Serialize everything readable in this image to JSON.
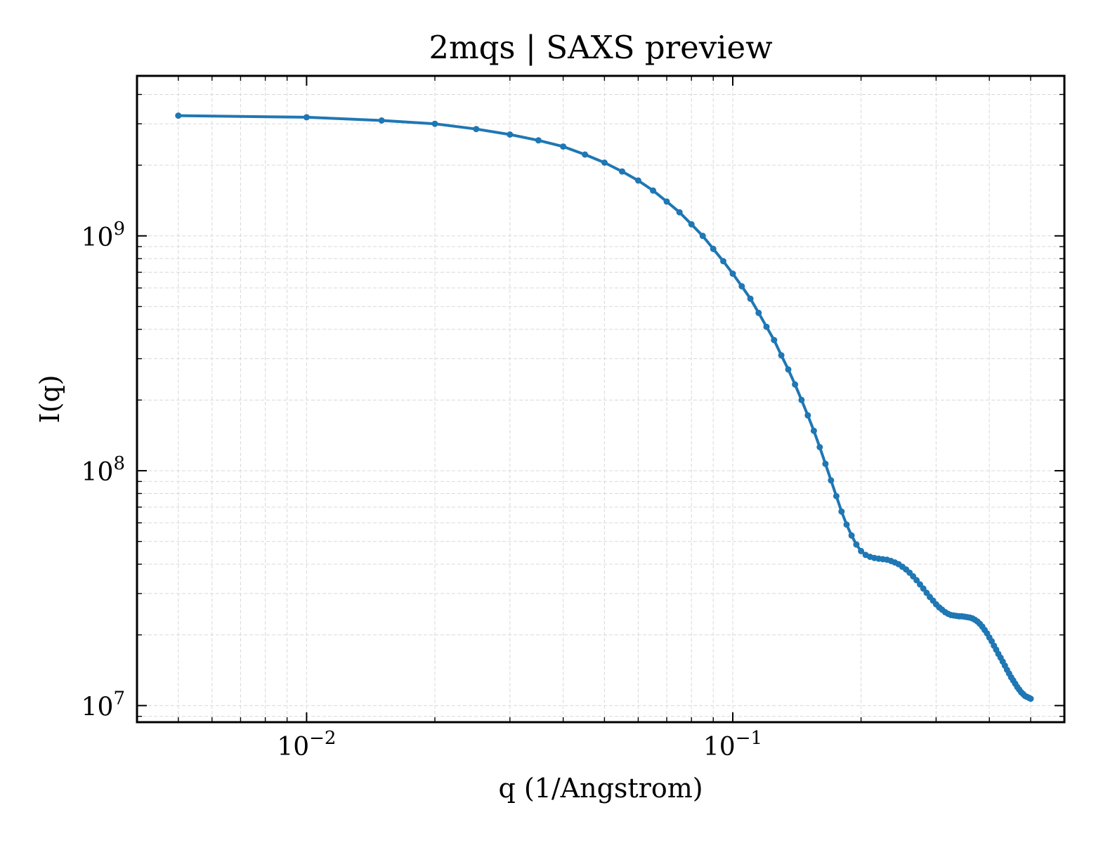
{
  "chart_data": {
    "type": "line",
    "title": "2mqs | SAXS preview",
    "xlabel": "q (1/Angstrom)",
    "ylabel": "I(q)",
    "xscale": "log",
    "yscale": "log",
    "xlim": [
      0.004,
      0.6
    ],
    "ylim": [
      8500000,
      4800000000
    ],
    "xticks": [
      {
        "value": 0.01,
        "base": "10",
        "exp": "−2"
      },
      {
        "value": 0.1,
        "base": "10",
        "exp": "−1"
      }
    ],
    "yticks": [
      {
        "value": 10000000,
        "base": "10",
        "exp": "7"
      },
      {
        "value": 100000000,
        "base": "10",
        "exp": "8"
      },
      {
        "value": 1000000000,
        "base": "10",
        "exp": "9"
      }
    ],
    "grid": true,
    "color": "#1f77b4",
    "series": [
      {
        "x": [
          0.005,
          0.01,
          0.015,
          0.02,
          0.025,
          0.03,
          0.035,
          0.04,
          0.045,
          0.05,
          0.055,
          0.06,
          0.065,
          0.07,
          0.075,
          0.08,
          0.085,
          0.09,
          0.095,
          0.1,
          0.105,
          0.11,
          0.115,
          0.12,
          0.125,
          0.13,
          0.135,
          0.14,
          0.145,
          0.15,
          0.155,
          0.16,
          0.165,
          0.17,
          0.175,
          0.18,
          0.185,
          0.19,
          0.195,
          0.2,
          0.205,
          0.21,
          0.215,
          0.22,
          0.225,
          0.23,
          0.235,
          0.24,
          0.245,
          0.25,
          0.255,
          0.26,
          0.265,
          0.27,
          0.275,
          0.28,
          0.285,
          0.29,
          0.295,
          0.3,
          0.305,
          0.31,
          0.315,
          0.32,
          0.325,
          0.33,
          0.335,
          0.34,
          0.345,
          0.35,
          0.355,
          0.36,
          0.365,
          0.37,
          0.375,
          0.38,
          0.385,
          0.39,
          0.395,
          0.4,
          0.405,
          0.41,
          0.415,
          0.42,
          0.425,
          0.43,
          0.435,
          0.44,
          0.445,
          0.45,
          0.455,
          0.46,
          0.465,
          0.47,
          0.475,
          0.48,
          0.485,
          0.49,
          0.495,
          0.5
        ],
        "y": [
          3250000000,
          3200000000,
          3100000000,
          3000000000,
          2850000000,
          2700000000,
          2550000000,
          2400000000,
          2220000000,
          2050000000,
          1880000000,
          1720000000,
          1560000000,
          1400000000,
          1260000000,
          1120000000,
          1000000000,
          880000000,
          780000000,
          690000000,
          610000000,
          540000000,
          470000000,
          410000000,
          360000000,
          310000000,
          270000000,
          233000000,
          200000000,
          172000000,
          148000000,
          126000000,
          107000000,
          91000000,
          78000000,
          67000000,
          59000000,
          53000000,
          48500000,
          45500000,
          43800000,
          43000000,
          42500000,
          42200000,
          42000000,
          41800000,
          41300000,
          40700000,
          40000000,
          39000000,
          38000000,
          36800000,
          35500000,
          34200000,
          32800000,
          31500000,
          30200000,
          29000000,
          28000000,
          27000000,
          26200000,
          25600000,
          25000000,
          24600000,
          24300000,
          24200000,
          24100000,
          24000000,
          24000000,
          23900000,
          23800000,
          23700000,
          23500000,
          23200000,
          22800000,
          22300000,
          21700000,
          21000000,
          20300000,
          19500000,
          18800000,
          18000000,
          17300000,
          16600000,
          16000000,
          15400000,
          14800000,
          14200000,
          13700000,
          13200000,
          12800000,
          12400000,
          12000000,
          11700000,
          11400000,
          11200000,
          11000000,
          10900000,
          10800000,
          10700000
        ]
      }
    ]
  }
}
